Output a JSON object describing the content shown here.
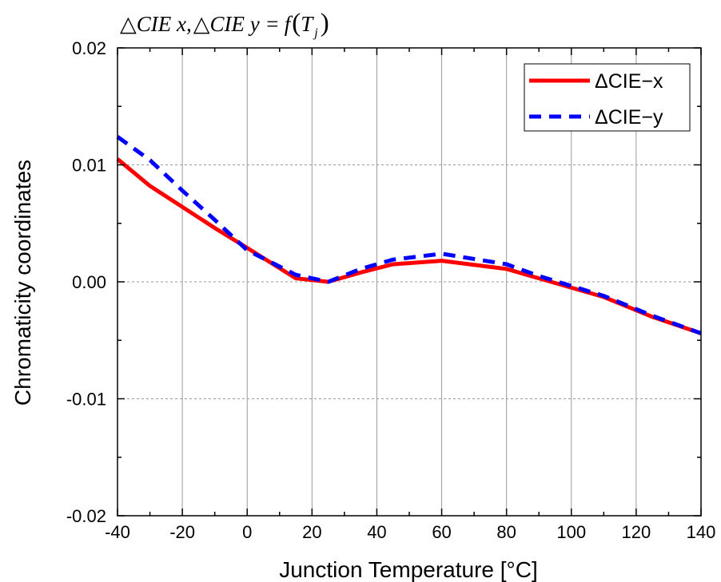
{
  "chart_data": {
    "type": "line",
    "title": "△CIE x,△CIE y = f(Tj)",
    "title_parts": {
      "delta": "△",
      "cie_x": "CIE x,",
      "cie_y": "CIE y =",
      "f": "f",
      "open_paren": "(",
      "t": "T",
      "sub_j": "j",
      "close_paren": ")"
    },
    "xlabel": "Junction Temperature [°C]",
    "ylabel": "Chromaticity coordinates",
    "xlim": [
      -40,
      140
    ],
    "ylim": [
      -0.02,
      0.02
    ],
    "x_ticks": [
      -40,
      -20,
      0,
      20,
      40,
      60,
      80,
      100,
      120,
      140
    ],
    "x_tick_labels": [
      "-40",
      "-20",
      "0",
      "20",
      "40",
      "60",
      "80",
      "100",
      "120",
      "140"
    ],
    "y_ticks": [
      -0.02,
      -0.01,
      0.0,
      0.01,
      0.02
    ],
    "y_tick_labels": [
      "-0.02",
      "-0.01",
      "0.00",
      "0.01",
      "0.02"
    ],
    "grid": true,
    "legend_position": "top-right",
    "series": [
      {
        "name": "ΔCIE−x",
        "color": "#ff0000",
        "dash": "solid",
        "x": [
          -40,
          -30,
          -20,
          -10,
          0,
          15,
          25,
          35,
          45,
          60,
          80,
          90,
          110,
          125,
          140
        ],
        "y": [
          0.0105,
          0.0082,
          0.0064,
          0.0046,
          0.0029,
          0.0003,
          0.0,
          0.0008,
          0.0015,
          0.0018,
          0.0011,
          0.0003,
          -0.0013,
          -0.003,
          -0.0044
        ]
      },
      {
        "name": "ΔCIE−y",
        "color": "#0000ff",
        "dash": "dashed",
        "x": [
          -40,
          -30,
          -20,
          -10,
          0,
          15,
          25,
          35,
          45,
          60,
          80,
          90,
          110,
          125,
          140
        ],
        "y": [
          0.0124,
          0.0104,
          0.0078,
          0.0053,
          0.0027,
          0.0006,
          0.0,
          0.0011,
          0.0019,
          0.0024,
          0.0015,
          0.0005,
          -0.0012,
          -0.0029,
          -0.0044
        ]
      }
    ]
  }
}
